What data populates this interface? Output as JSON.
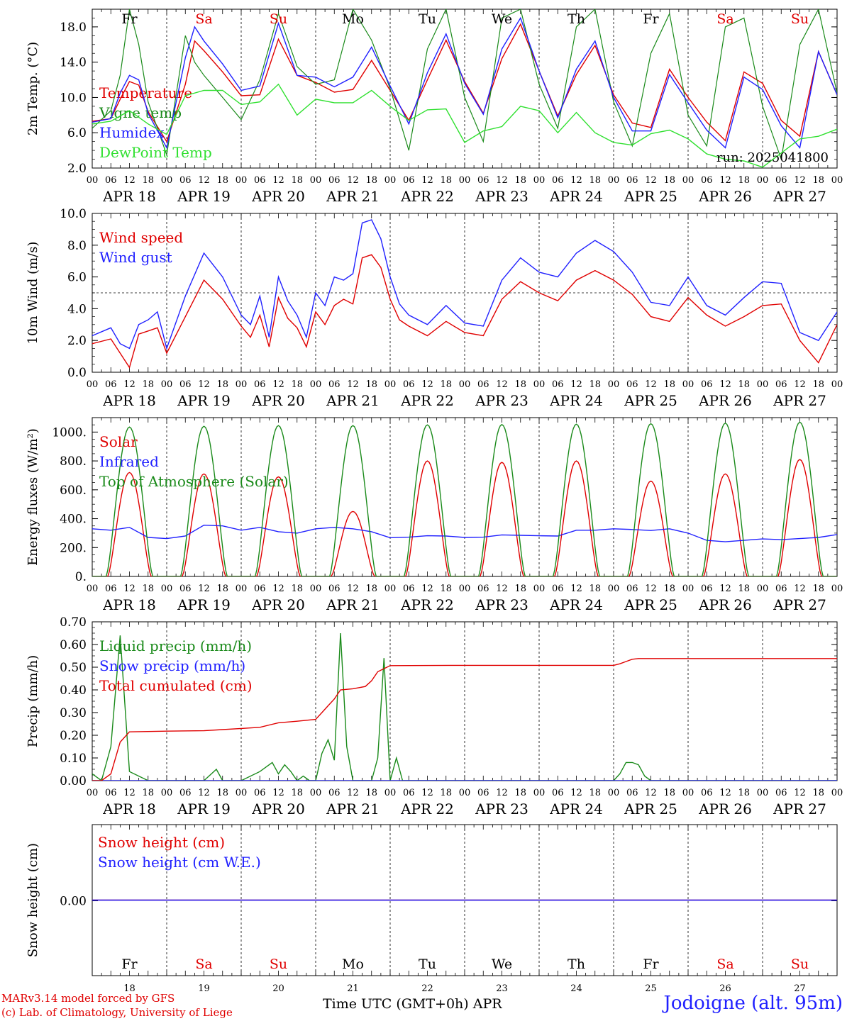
{
  "run_label": "run: 2025041800",
  "days": [
    "APR 18",
    "APR 19",
    "APR 20",
    "APR 21",
    "APR 22",
    "APR 23",
    "APR 24",
    "APR 25",
    "APR 26",
    "APR 27"
  ],
  "weekdays": [
    "Fr",
    "Sa",
    "Su",
    "Mo",
    "Tu",
    "We",
    "Th",
    "Fr",
    "Sa",
    "Su"
  ],
  "weekend_flags": [
    false,
    true,
    true,
    false,
    false,
    false,
    false,
    false,
    true,
    true
  ],
  "day_numbers": [
    "18",
    "19",
    "20",
    "21",
    "22",
    "23",
    "24",
    "25",
    "26",
    "27"
  ],
  "hour_labels": [
    "00",
    "06",
    "12",
    "18"
  ],
  "footer": {
    "credit_line1": "MARv3.14 model forced by GFS",
    "credit_line2": "(c) Lab. of Climatology, University of Liege",
    "xaxis_title": "Time UTC (GMT+0h) APR",
    "station": "Jodoigne (alt. 95m)"
  },
  "colors": {
    "red": "#e00000",
    "green": "#1a8a1a",
    "blue": "#2020ff",
    "lime": "#30e030"
  },
  "chart_data": [
    {
      "type": "line",
      "ylabel": "2m Temp. (°C)",
      "ylim": [
        2,
        20
      ],
      "yticks": [
        "2.0",
        "6.0",
        "10.0",
        "14.0",
        "18.0"
      ],
      "x_unit": "hours since APR 18 00 UTC",
      "series": [
        {
          "name": "Temperature",
          "color": "red",
          "x": [
            0,
            6,
            9,
            12,
            15,
            18,
            24,
            30,
            33,
            36,
            42,
            48,
            54,
            60,
            66,
            72,
            78,
            84,
            90,
            96,
            102,
            108,
            114,
            120,
            126,
            132,
            138,
            144,
            150,
            156,
            162,
            168,
            174,
            180,
            186,
            192,
            198,
            204,
            210,
            216,
            222,
            228,
            234,
            240
          ],
          "values": [
            7.3,
            7.6,
            9.8,
            11.8,
            11.4,
            8.4,
            5.0,
            11.5,
            16.4,
            15.3,
            12.9,
            10.2,
            10.3,
            16.6,
            12.5,
            11.7,
            10.6,
            10.9,
            14.2,
            10.8,
            7.4,
            12.0,
            16.5,
            11.8,
            8.2,
            14.4,
            18.3,
            13.0,
            7.9,
            12.6,
            15.9,
            10.3,
            7.1,
            6.6,
            13.2,
            10.0,
            7.2,
            5.1,
            12.9,
            11.6,
            7.4,
            5.6,
            15.2,
            10.3
          ]
        },
        {
          "name": "Vigne temp",
          "color": "green",
          "x": [
            0,
            6,
            9,
            12,
            15,
            18,
            24,
            30,
            33,
            36,
            42,
            48,
            54,
            60,
            66,
            72,
            78,
            84,
            90,
            96,
            102,
            108,
            114,
            120,
            126,
            132,
            138,
            144,
            150,
            156,
            162,
            168,
            174,
            180,
            186,
            192,
            198,
            204,
            210,
            216,
            222,
            228,
            234,
            240
          ],
          "values": [
            6.5,
            8.5,
            12.5,
            20.0,
            16.0,
            9.5,
            3.5,
            17.0,
            14.0,
            12.5,
            10.0,
            7.5,
            12.0,
            19.5,
            13.5,
            11.5,
            12.0,
            20.0,
            16.5,
            11.0,
            4.0,
            15.5,
            20.0,
            10.0,
            5.0,
            19.0,
            20.0,
            11.5,
            6.5,
            18.0,
            20.0,
            9.5,
            4.5,
            15.0,
            19.5,
            8.0,
            4.5,
            18.0,
            19.0,
            9.0,
            3.0,
            16.0,
            20.0,
            10.5
          ]
        },
        {
          "name": "Humidex",
          "color": "blue",
          "x": [
            0,
            6,
            9,
            12,
            15,
            18,
            24,
            30,
            33,
            36,
            42,
            48,
            54,
            60,
            66,
            72,
            78,
            84,
            90,
            96,
            102,
            108,
            114,
            120,
            126,
            132,
            138,
            144,
            150,
            156,
            162,
            168,
            174,
            180,
            186,
            192,
            198,
            204,
            210,
            216,
            222,
            228,
            234,
            240
          ],
          "values": [
            7.2,
            7.6,
            10.5,
            12.5,
            12.0,
            8.2,
            4.3,
            14.5,
            18.0,
            16.4,
            13.8,
            10.8,
            11.3,
            18.4,
            12.5,
            12.3,
            11.2,
            12.3,
            15.7,
            11.3,
            7.0,
            12.8,
            17.2,
            11.6,
            8.1,
            15.5,
            19.0,
            13.0,
            7.7,
            13.2,
            16.4,
            10.0,
            6.2,
            6.2,
            12.6,
            9.4,
            6.3,
            4.3,
            12.3,
            10.9,
            6.8,
            4.3,
            15.2,
            10.3
          ]
        },
        {
          "name": "DewPoint Temp",
          "color": "lime",
          "x": [
            0,
            6,
            12,
            18,
            24,
            30,
            36,
            42,
            48,
            54,
            60,
            66,
            72,
            78,
            84,
            90,
            96,
            102,
            108,
            114,
            120,
            126,
            132,
            138,
            144,
            150,
            156,
            162,
            168,
            174,
            180,
            186,
            192,
            198,
            204,
            210,
            216,
            222,
            228,
            234,
            240
          ],
          "values": [
            7.0,
            7.3,
            8.5,
            7.0,
            5.8,
            10.2,
            10.8,
            10.8,
            9.2,
            9.5,
            11.5,
            8.0,
            9.8,
            9.4,
            9.4,
            10.8,
            9.0,
            7.4,
            8.6,
            8.7,
            4.9,
            6.2,
            6.7,
            9.0,
            8.5,
            6.0,
            8.3,
            6.0,
            4.9,
            4.6,
            5.9,
            6.3,
            5.3,
            3.6,
            3.0,
            2.8,
            2.1,
            3.7,
            5.3,
            5.6,
            6.4
          ]
        }
      ]
    },
    {
      "type": "line",
      "ylabel": "10m Wind (m/s)",
      "ylim": [
        0,
        10
      ],
      "yticks": [
        "0.0",
        "2.0",
        "4.0",
        "6.0",
        "8.0",
        "10.0"
      ],
      "reference_line": 5,
      "series": [
        {
          "name": "Wind speed",
          "color": "red",
          "x": [
            0,
            6,
            9,
            12,
            15,
            18,
            21,
            24,
            30,
            36,
            42,
            48,
            51,
            54,
            57,
            60,
            63,
            66,
            69,
            72,
            75,
            78,
            81,
            84,
            87,
            90,
            93,
            96,
            99,
            102,
            108,
            114,
            120,
            126,
            132,
            138,
            144,
            150,
            156,
            162,
            168,
            174,
            180,
            186,
            192,
            198,
            204,
            210,
            216,
            222,
            228,
            234,
            240
          ],
          "values": [
            1.8,
            2.1,
            1.2,
            0.3,
            2.4,
            2.6,
            2.8,
            1.2,
            3.5,
            5.8,
            4.6,
            2.9,
            2.2,
            3.6,
            1.6,
            4.7,
            3.4,
            2.8,
            1.6,
            3.8,
            3.0,
            4.2,
            4.6,
            4.3,
            7.2,
            7.4,
            6.6,
            4.6,
            3.3,
            2.9,
            2.3,
            3.2,
            2.5,
            2.3,
            4.6,
            5.7,
            5.0,
            4.5,
            5.8,
            6.4,
            5.8,
            4.9,
            3.5,
            3.2,
            4.7,
            3.6,
            2.9,
            3.5,
            4.2,
            4.3,
            2.0,
            0.6,
            3.0
          ]
        },
        {
          "name": "Wind gust",
          "color": "blue",
          "x": [
            0,
            6,
            9,
            12,
            15,
            18,
            21,
            24,
            30,
            36,
            42,
            48,
            51,
            54,
            57,
            60,
            63,
            66,
            69,
            72,
            75,
            78,
            81,
            84,
            87,
            90,
            93,
            96,
            99,
            102,
            108,
            114,
            120,
            126,
            132,
            138,
            144,
            150,
            156,
            162,
            168,
            174,
            180,
            186,
            192,
            198,
            204,
            210,
            216,
            222,
            228,
            234,
            240
          ],
          "values": [
            2.3,
            2.8,
            1.8,
            1.5,
            3.0,
            3.3,
            3.8,
            1.5,
            4.8,
            7.5,
            6.0,
            3.6,
            3.0,
            4.8,
            2.2,
            6.0,
            4.5,
            3.6,
            2.2,
            5.0,
            4.2,
            6.0,
            5.8,
            6.2,
            9.4,
            9.6,
            8.4,
            6.0,
            4.3,
            3.6,
            3.0,
            4.2,
            3.1,
            2.9,
            5.8,
            7.2,
            6.3,
            6.0,
            7.5,
            8.3,
            7.6,
            6.3,
            4.4,
            4.2,
            6.0,
            4.2,
            3.6,
            4.7,
            5.7,
            5.6,
            2.5,
            2.0,
            3.8
          ]
        }
      ]
    },
    {
      "type": "line",
      "ylabel": "Energy fluxes (W/m²)",
      "ylim": [
        0,
        1100
      ],
      "yticks": [
        "0.",
        "200.",
        "400.",
        "600.",
        "800.",
        "1000."
      ],
      "series": [
        {
          "name": "Solar",
          "color": "red",
          "profile": "daily",
          "peaks": [
            720,
            710,
            690,
            450,
            800,
            790,
            800,
            660,
            710,
            810
          ],
          "start_hour": 5,
          "end_hour": 19
        },
        {
          "name": "Infrared",
          "color": "blue",
          "x": [
            0,
            6,
            12,
            18,
            24,
            30,
            36,
            42,
            48,
            54,
            60,
            66,
            72,
            78,
            84,
            90,
            96,
            102,
            108,
            114,
            120,
            126,
            132,
            138,
            144,
            150,
            156,
            162,
            168,
            174,
            180,
            186,
            192,
            198,
            204,
            210,
            216,
            222,
            228,
            234,
            240
          ],
          "values": [
            330,
            320,
            340,
            270,
            262,
            280,
            355,
            350,
            320,
            340,
            310,
            300,
            330,
            340,
            330,
            310,
            268,
            272,
            282,
            280,
            270,
            272,
            288,
            285,
            282,
            280,
            320,
            320,
            330,
            325,
            318,
            330,
            300,
            250,
            240,
            250,
            260,
            255,
            262,
            270,
            290
          ]
        },
        {
          "name": "Top of Atmosphere (Solar)",
          "color": "green",
          "profile": "daily",
          "peaks": [
            1035,
            1040,
            1045,
            1045,
            1050,
            1052,
            1055,
            1058,
            1062,
            1068
          ],
          "start_hour": 4.5,
          "end_hour": 19.5
        }
      ]
    },
    {
      "type": "line",
      "ylabel": "Precip (mm/h)",
      "ylim": [
        0,
        0.7
      ],
      "yticks": [
        "0.00",
        "0.10",
        "0.20",
        "0.30",
        "0.40",
        "0.50",
        "0.60",
        "0.70"
      ],
      "series": [
        {
          "name": "Liquid precip (mm/h)",
          "color": "green",
          "x": [
            0,
            3,
            6,
            9,
            12,
            18,
            24,
            36,
            40,
            42,
            44,
            48,
            54,
            58,
            60,
            62,
            64,
            66,
            68,
            70,
            72,
            74,
            76,
            78,
            80,
            82,
            84,
            87,
            90,
            92,
            94,
            96,
            98,
            100,
            102,
            120,
            168,
            170,
            172,
            174,
            176,
            178,
            180,
            240
          ],
          "values": [
            0.03,
            0.0,
            0.15,
            0.64,
            0.04,
            0.0,
            0.0,
            0.0,
            0.05,
            0.0,
            0.0,
            0.0,
            0.04,
            0.08,
            0.03,
            0.07,
            0.04,
            0.0,
            0.02,
            0.0,
            0.0,
            0.12,
            0.18,
            0.09,
            0.65,
            0.15,
            0.0,
            0.0,
            0.0,
            0.1,
            0.54,
            0.0,
            0.1,
            0.0,
            0.0,
            0.0,
            0.0,
            0.03,
            0.08,
            0.08,
            0.07,
            0.02,
            0.0,
            0.0
          ]
        },
        {
          "name": "Snow precip (mm/h)",
          "color": "blue",
          "x": [
            0,
            240
          ],
          "values": [
            0.0,
            0.0
          ]
        },
        {
          "name": "Total cumulated (cm)",
          "color": "red",
          "x": [
            0,
            3,
            6,
            9,
            12,
            24,
            36,
            42,
            48,
            54,
            60,
            66,
            72,
            74,
            76,
            78,
            80,
            84,
            86,
            88,
            90,
            92,
            96,
            120,
            144,
            168,
            170,
            172,
            174,
            176,
            180,
            240
          ],
          "values": [
            0.0,
            0.0,
            0.03,
            0.17,
            0.215,
            0.218,
            0.22,
            0.225,
            0.23,
            0.235,
            0.255,
            0.262,
            0.27,
            0.3,
            0.33,
            0.36,
            0.4,
            0.405,
            0.41,
            0.415,
            0.44,
            0.48,
            0.507,
            0.508,
            0.508,
            0.508,
            0.515,
            0.525,
            0.535,
            0.538,
            0.538,
            0.538
          ]
        }
      ]
    },
    {
      "type": "line",
      "ylabel": "Snow height (cm)",
      "yticks": [
        "0.00"
      ],
      "series": [
        {
          "name": "Snow height (cm)",
          "color": "red",
          "x": [
            0,
            240
          ],
          "values": [
            0.0,
            0.0
          ]
        },
        {
          "name": "Snow height (cm W.E.)",
          "color": "blue",
          "x": [
            0,
            240
          ],
          "values": [
            0.0,
            0.0
          ]
        }
      ]
    }
  ]
}
